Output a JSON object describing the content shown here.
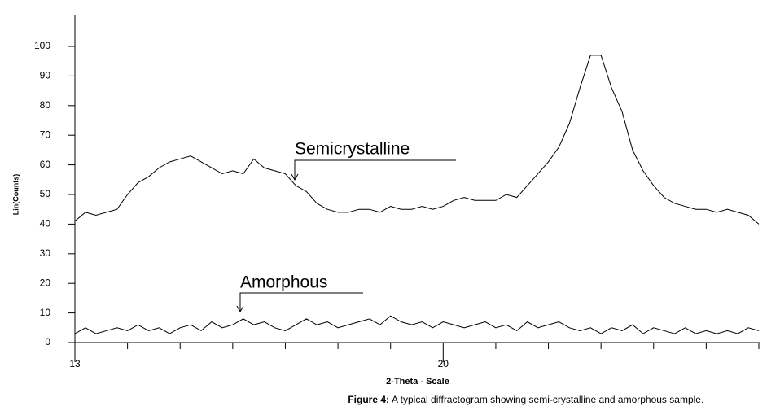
{
  "chart_data": {
    "type": "line",
    "x_label": "2-Theta - Scale",
    "y_label": "Lin(Counts)",
    "figure_label": "Figure 4:",
    "caption": "A typical diffractogram showing semi-crystalline and amorphous sample.",
    "annotations": [
      "Semicrystalline",
      "Amorphous"
    ],
    "x": [
      13.0,
      13.2,
      13.4,
      13.6,
      13.8,
      14.0,
      14.2,
      14.4,
      14.6,
      14.8,
      15.0,
      15.2,
      15.4,
      15.6,
      15.8,
      16.0,
      16.2,
      16.4,
      16.6,
      16.8,
      17.0,
      17.2,
      17.4,
      17.6,
      17.8,
      18.0,
      18.2,
      18.4,
      18.6,
      18.8,
      19.0,
      19.2,
      19.4,
      19.6,
      19.8,
      20.0,
      20.2,
      20.4,
      20.6,
      20.8,
      21.0,
      21.2,
      21.4,
      21.6,
      21.8,
      22.0,
      22.2,
      22.4,
      22.6,
      22.8,
      23.0,
      23.2,
      23.4,
      23.6,
      23.8,
      24.0,
      24.2,
      24.4,
      24.6,
      24.8,
      25.0,
      25.2,
      25.4,
      25.6,
      25.8,
      26.0
    ],
    "series": [
      {
        "name": "Semicrystalline",
        "color": "#000000",
        "values": [
          41,
          44,
          43,
          44,
          45,
          50,
          54,
          56,
          59,
          61,
          62,
          63,
          61,
          59,
          57,
          58,
          57,
          62,
          59,
          58,
          57,
          53,
          51,
          47,
          45,
          44,
          44,
          45,
          45,
          44,
          46,
          45,
          45,
          46,
          45,
          46,
          48,
          49,
          48,
          48,
          48,
          50,
          49,
          53,
          57,
          61,
          66,
          74,
          86,
          97,
          97,
          86,
          78,
          65,
          58,
          53,
          49,
          47,
          46,
          45,
          45,
          44,
          45,
          44,
          43,
          40
        ]
      },
      {
        "name": "Amorphous",
        "color": "#000000",
        "values": [
          3,
          5,
          3,
          4,
          5,
          4,
          6,
          4,
          5,
          3,
          5,
          6,
          4,
          7,
          5,
          6,
          8,
          6,
          7,
          5,
          4,
          6,
          8,
          6,
          7,
          5,
          6,
          7,
          8,
          6,
          9,
          7,
          6,
          7,
          5,
          7,
          6,
          5,
          6,
          7,
          5,
          6,
          4,
          7,
          5,
          6,
          7,
          5,
          4,
          5,
          3,
          5,
          4,
          6,
          3,
          5,
          4,
          3,
          5,
          3,
          4,
          3,
          4,
          3,
          5,
          4
        ]
      }
    ],
    "xlim": [
      13,
      26
    ],
    "xticks": [
      13,
      20
    ],
    "xminor_ticks": [
      14,
      15,
      16,
      17,
      18,
      19,
      21,
      22,
      23,
      24,
      25,
      26
    ],
    "ylim": [
      0,
      110
    ],
    "yticks": [
      0,
      10,
      20,
      30,
      40,
      50,
      60,
      70,
      80,
      90,
      100
    ]
  }
}
